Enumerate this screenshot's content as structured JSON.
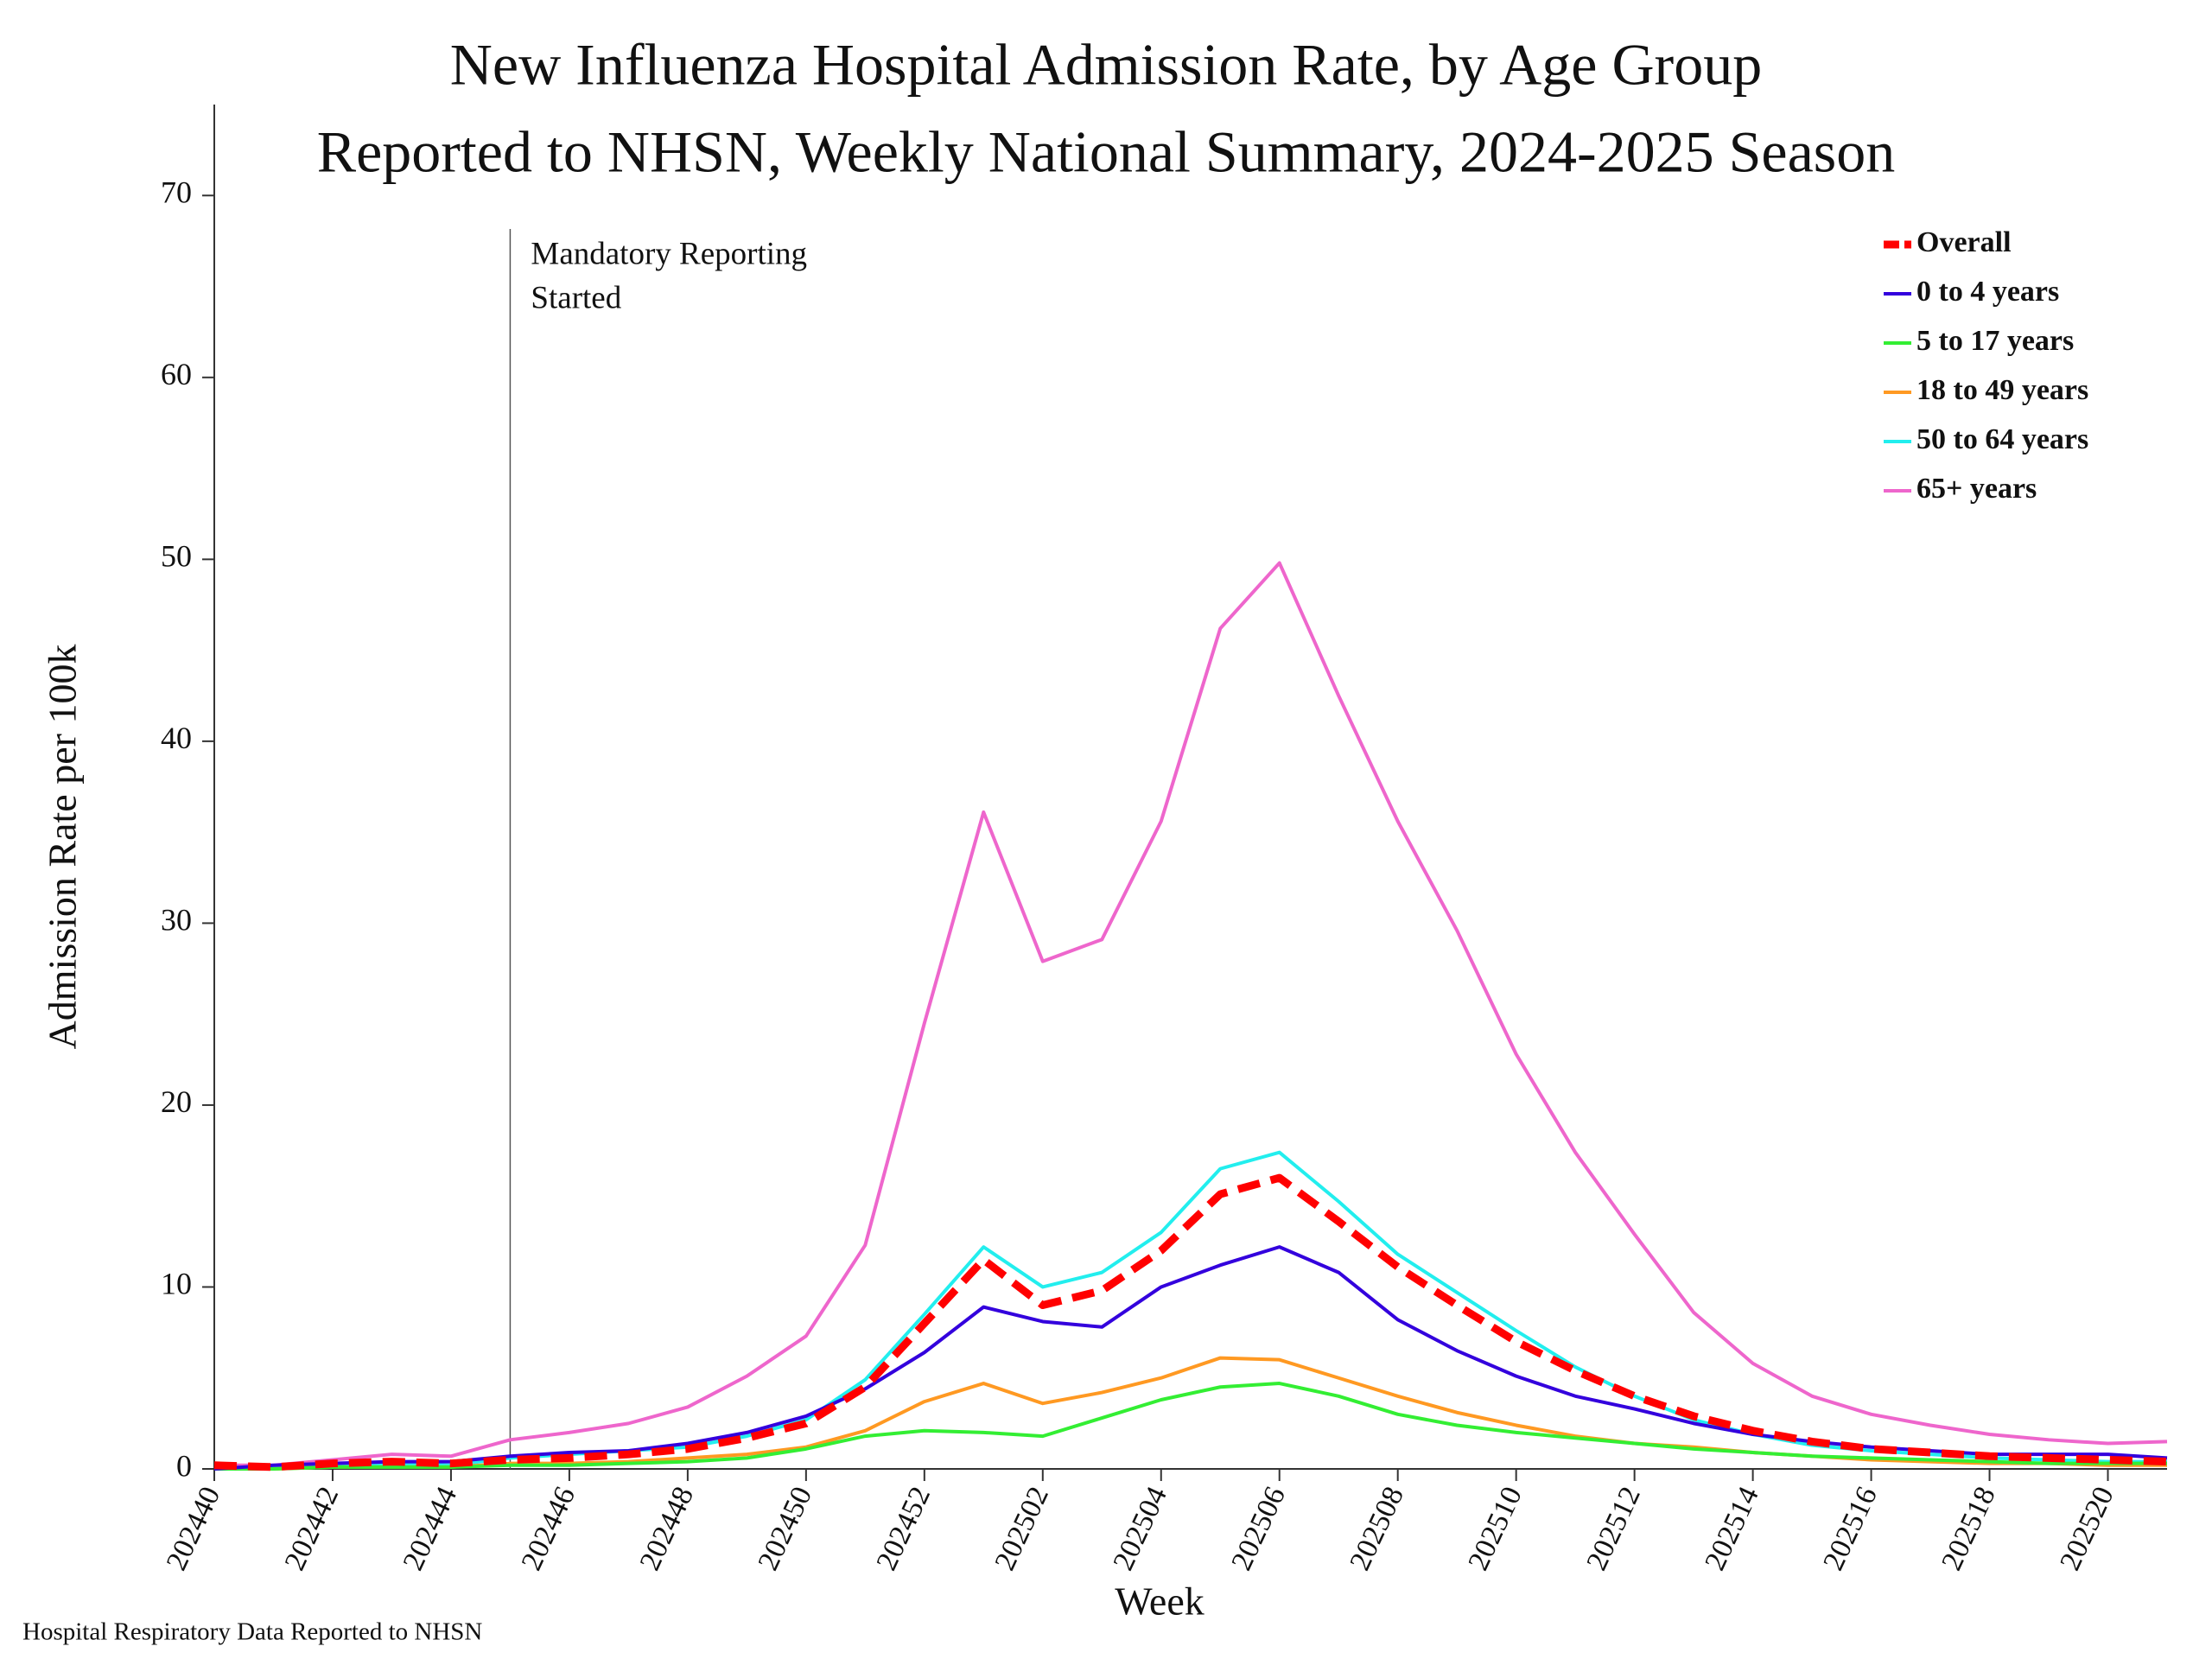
{
  "chart_data": {
    "type": "line",
    "title": "New Influenza Hospital Admission Rate, by Age Group",
    "subtitle": "Reported to NHSN, Weekly National Summary, 2024-2025 Season",
    "x_label": "Week",
    "y_label": "Admission Rate per 100k",
    "annotation": [
      "Mandatory Reporting",
      "Started"
    ],
    "footnote": "Hospital Respiratory Data Reported to NHSN",
    "categories": [
      "202440",
      null,
      "202442",
      null,
      "202444",
      null,
      "202446",
      null,
      "202448",
      null,
      "202450",
      null,
      "202452",
      null,
      "202502",
      null,
      "202504",
      null,
      "202506",
      null,
      "202508",
      null,
      "202510",
      null,
      "202512",
      null,
      "202514",
      null,
      "202516",
      null,
      "202518",
      null,
      "202520",
      null
    ],
    "ylim": [
      0,
      75
    ],
    "yticks": [
      0,
      10,
      20,
      30,
      40,
      50,
      60,
      70
    ],
    "grid": false,
    "legend": "upper right",
    "series": [
      {
        "name": "Overall",
        "color": "#ff0000",
        "line_style": "dashed",
        "values": [
          0.2,
          0.1,
          0.3,
          0.4,
          0.3,
          0.5,
          0.6,
          0.8,
          1.1,
          1.7,
          2.5,
          4.5,
          8.0,
          11.5,
          9.0,
          9.8,
          12.0,
          15.1,
          16.0,
          13.6,
          11.1,
          9.0,
          7.0,
          5.4,
          4.0,
          2.9,
          2.1,
          1.5,
          1.1,
          0.9,
          0.7,
          0.6,
          0.5,
          0.4
        ]
      },
      {
        "name": "0 to 4 years",
        "color": "#3300dd",
        "values": [
          0,
          0.2,
          0.3,
          0.4,
          0.4,
          0.7,
          0.9,
          1.0,
          1.4,
          2.0,
          2.9,
          4.4,
          6.4,
          8.9,
          8.1,
          7.8,
          10.0,
          11.2,
          12.2,
          10.8,
          8.2,
          6.5,
          5.1,
          4.0,
          3.3,
          2.5,
          1.9,
          1.5,
          1.2,
          1.0,
          0.8,
          0.8,
          0.8,
          0.6
        ]
      },
      {
        "name": "5 to 17 years",
        "color": "#33ee33",
        "values": [
          0,
          0,
          0.1,
          0.1,
          0.1,
          0.2,
          0.2,
          0.3,
          0.4,
          0.6,
          1.1,
          1.8,
          2.1,
          2.0,
          1.8,
          2.8,
          3.8,
          4.5,
          4.7,
          4.0,
          3.0,
          2.4,
          2.0,
          1.7,
          1.4,
          1.1,
          0.9,
          0.7,
          0.6,
          0.5,
          0.4,
          0.3,
          0.3,
          0.3
        ]
      },
      {
        "name": "18 to 49 years",
        "color": "#ff9922",
        "values": [
          0,
          0,
          0.1,
          0.1,
          0.1,
          0.3,
          0.3,
          0.4,
          0.6,
          0.8,
          1.2,
          2.1,
          3.7,
          4.7,
          3.6,
          4.2,
          5.0,
          6.1,
          6.0,
          5.0,
          4.0,
          3.1,
          2.4,
          1.8,
          1.4,
          1.2,
          0.9,
          0.7,
          0.5,
          0.4,
          0.3,
          0.3,
          0.2,
          0.2
        ]
      },
      {
        "name": "50 to 64 years",
        "color": "#22eeee",
        "values": [
          0,
          0.1,
          0.2,
          0.3,
          0.2,
          0.6,
          0.8,
          1.0,
          1.2,
          1.8,
          2.7,
          4.9,
          8.5,
          12.2,
          10.0,
          10.8,
          13.0,
          16.5,
          17.4,
          14.7,
          11.8,
          9.7,
          7.6,
          5.6,
          4.0,
          2.7,
          1.9,
          1.3,
          1.0,
          0.8,
          0.6,
          0.5,
          0.4,
          0.4
        ]
      },
      {
        "name": "65+ years",
        "color": "#ee66cc",
        "values": [
          0.2,
          0.2,
          0.5,
          0.8,
          0.7,
          1.6,
          2.0,
          2.5,
          3.4,
          5.1,
          7.3,
          12.3,
          24.5,
          36.1,
          27.9,
          29.1,
          35.6,
          46.2,
          49.8,
          42.5,
          35.6,
          29.6,
          22.8,
          17.4,
          12.9,
          8.6,
          5.8,
          4.0,
          3.0,
          2.4,
          1.9,
          1.6,
          1.4,
          1.5
        ]
      }
    ]
  }
}
